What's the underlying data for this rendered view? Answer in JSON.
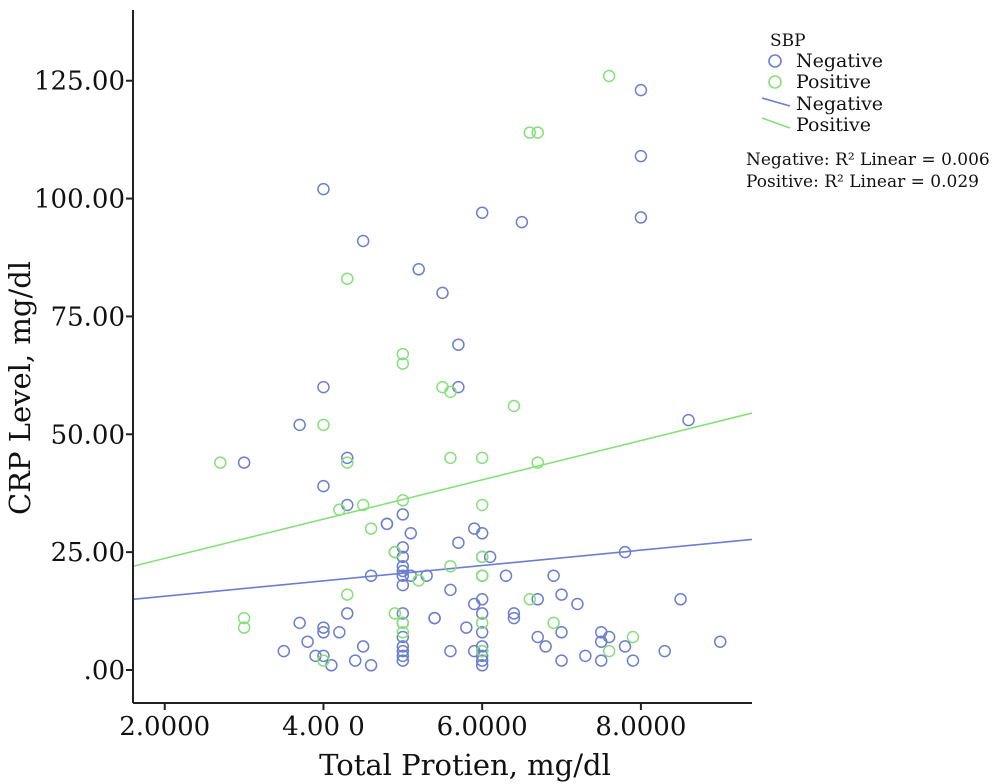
{
  "chart_data": {
    "type": "scatter",
    "xlabel": "Total Protien, mg/dl",
    "ylabel": "CRP Level, mg/dl",
    "xlim": [
      1.6,
      9.4
    ],
    "ylim": [
      -7,
      140
    ],
    "x_ticks": [
      {
        "value": 2,
        "label": "2.0000"
      },
      {
        "value": 4,
        "label": "4.00 0"
      },
      {
        "value": 6,
        "label": "6.0000"
      },
      {
        "value": 8,
        "label": "8.0000"
      }
    ],
    "y_ticks": [
      {
        "value": 0,
        "label": ".00"
      },
      {
        "value": 25,
        "label": "25.00"
      },
      {
        "value": 50,
        "label": "50.00"
      },
      {
        "value": 75,
        "label": "75.00"
      },
      {
        "value": 100,
        "label": "100.00"
      },
      {
        "value": 125,
        "label": "125.00"
      }
    ],
    "grid": false,
    "legend": {
      "position": "top-right",
      "title": "SBP",
      "marker_entries": [
        "Negative",
        "Positive"
      ],
      "line_entries": [
        "Negative",
        "Positive"
      ],
      "stats": [
        "Negative: R² Linear = 0.006",
        "Positive: R² Linear = 0.029"
      ]
    },
    "colors": {
      "negative": "#6b7fcf",
      "positive": "#86e07a"
    },
    "series": [
      {
        "name": "Negative",
        "points": [
          [
            3.0,
            44
          ],
          [
            3.5,
            4
          ],
          [
            3.7,
            52
          ],
          [
            3.7,
            10
          ],
          [
            3.8,
            6
          ],
          [
            3.9,
            3
          ],
          [
            4.0,
            102
          ],
          [
            4.0,
            60
          ],
          [
            4.0,
            39
          ],
          [
            4.0,
            9
          ],
          [
            4.0,
            8
          ],
          [
            4.0,
            3
          ],
          [
            4.1,
            1
          ],
          [
            4.2,
            8
          ],
          [
            4.3,
            45
          ],
          [
            4.3,
            35
          ],
          [
            4.3,
            12
          ],
          [
            4.4,
            2
          ],
          [
            4.5,
            91
          ],
          [
            4.5,
            5
          ],
          [
            4.6,
            20
          ],
          [
            4.6,
            1
          ],
          [
            4.8,
            31
          ],
          [
            4.8,
            31
          ],
          [
            4.9,
            25
          ],
          [
            5.0,
            33
          ],
          [
            5.0,
            26
          ],
          [
            5.0,
            24
          ],
          [
            5.0,
            22
          ],
          [
            5.0,
            21
          ],
          [
            5.0,
            20
          ],
          [
            5.0,
            18
          ],
          [
            5.0,
            12
          ],
          [
            5.0,
            10
          ],
          [
            5.0,
            7
          ],
          [
            5.0,
            5
          ],
          [
            5.0,
            4
          ],
          [
            5.0,
            3
          ],
          [
            5.0,
            2
          ],
          [
            5.1,
            29
          ],
          [
            5.1,
            20
          ],
          [
            5.2,
            85
          ],
          [
            5.3,
            20
          ],
          [
            5.4,
            11
          ],
          [
            5.4,
            11
          ],
          [
            5.5,
            80
          ],
          [
            5.6,
            17
          ],
          [
            5.6,
            4
          ],
          [
            5.7,
            69
          ],
          [
            5.7,
            60
          ],
          [
            5.7,
            27
          ],
          [
            5.8,
            9
          ],
          [
            5.9,
            30
          ],
          [
            5.9,
            14
          ],
          [
            5.9,
            4
          ],
          [
            6.0,
            97
          ],
          [
            6.0,
            29
          ],
          [
            6.0,
            24
          ],
          [
            6.0,
            20
          ],
          [
            6.0,
            15
          ],
          [
            6.0,
            12
          ],
          [
            6.0,
            8
          ],
          [
            6.0,
            5
          ],
          [
            6.0,
            4
          ],
          [
            6.0,
            3
          ],
          [
            6.0,
            2
          ],
          [
            6.0,
            1
          ],
          [
            6.1,
            24
          ],
          [
            6.3,
            20
          ],
          [
            6.4,
            12
          ],
          [
            6.4,
            11
          ],
          [
            6.5,
            95
          ],
          [
            6.7,
            15
          ],
          [
            6.7,
            7
          ],
          [
            6.8,
            5
          ],
          [
            6.9,
            20
          ],
          [
            7.0,
            16
          ],
          [
            7.0,
            8
          ],
          [
            7.0,
            2
          ],
          [
            7.2,
            14
          ],
          [
            7.3,
            3
          ],
          [
            7.5,
            8
          ],
          [
            7.5,
            6
          ],
          [
            7.5,
            2
          ],
          [
            7.6,
            7
          ],
          [
            7.8,
            25
          ],
          [
            7.8,
            5
          ],
          [
            7.9,
            2
          ],
          [
            8.0,
            123
          ],
          [
            8.0,
            109
          ],
          [
            8.0,
            96
          ],
          [
            8.3,
            4
          ],
          [
            8.5,
            15
          ],
          [
            8.6,
            53
          ],
          [
            9.0,
            6
          ]
        ]
      },
      {
        "name": "Positive",
        "points": [
          [
            2.7,
            44
          ],
          [
            3.0,
            11
          ],
          [
            3.0,
            9
          ],
          [
            4.0,
            52
          ],
          [
            4.0,
            2
          ],
          [
            4.2,
            34
          ],
          [
            4.3,
            83
          ],
          [
            4.3,
            44
          ],
          [
            4.3,
            16
          ],
          [
            4.5,
            35
          ],
          [
            4.6,
            30
          ],
          [
            4.9,
            25
          ],
          [
            4.9,
            12
          ],
          [
            5.0,
            67
          ],
          [
            5.0,
            65
          ],
          [
            5.0,
            36
          ],
          [
            5.0,
            10
          ],
          [
            5.0,
            8
          ],
          [
            5.2,
            19
          ],
          [
            5.5,
            60
          ],
          [
            5.6,
            59
          ],
          [
            5.6,
            45
          ],
          [
            5.6,
            22
          ],
          [
            6.0,
            45
          ],
          [
            6.0,
            35
          ],
          [
            6.0,
            24
          ],
          [
            6.0,
            20
          ],
          [
            6.0,
            20
          ],
          [
            6.0,
            10
          ],
          [
            6.0,
            4
          ],
          [
            6.4,
            56
          ],
          [
            6.6,
            114
          ],
          [
            6.6,
            15
          ],
          [
            6.7,
            114
          ],
          [
            6.7,
            44
          ],
          [
            6.9,
            10
          ],
          [
            7.6,
            126
          ],
          [
            7.6,
            4
          ],
          [
            7.9,
            7
          ]
        ]
      }
    ],
    "fit_lines": [
      {
        "name": "Negative",
        "from": [
          1.6,
          15
        ],
        "to": [
          9.4,
          27.7
        ]
      },
      {
        "name": "Positive",
        "from": [
          1.6,
          22
        ],
        "to": [
          9.4,
          54.5
        ]
      }
    ]
  }
}
